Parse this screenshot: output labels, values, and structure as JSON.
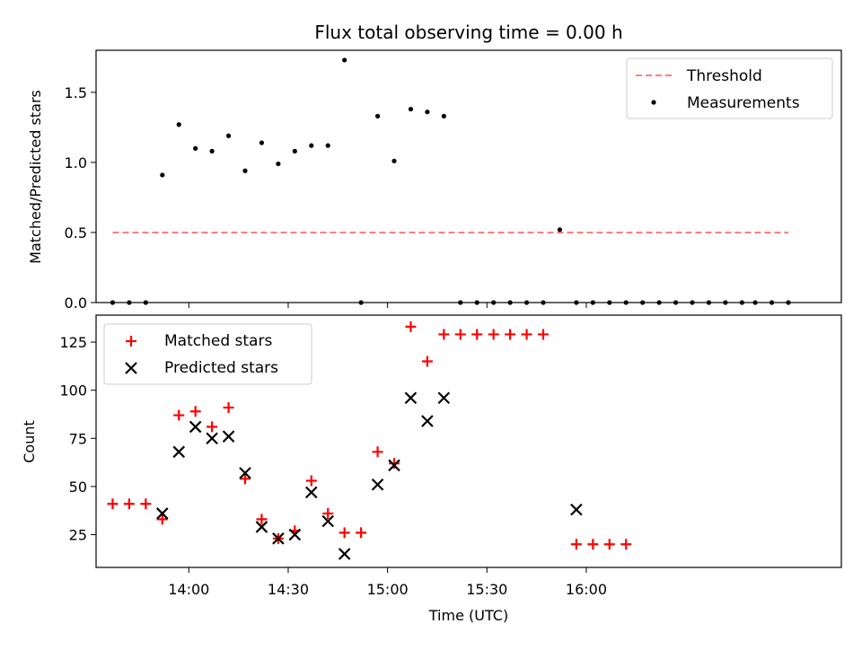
{
  "title": "Flux total observing time = 0.00 h",
  "colors": {
    "threshold": "#ff7f7f",
    "matched": "#ff0000",
    "predicted": "#000000",
    "measurement": "#000000",
    "axis": "#000000",
    "legend_border": "#cccccc"
  },
  "chart_data": [
    {
      "type": "scatter",
      "panel": "top",
      "title": "Flux total observing time = 0.00 h",
      "ylabel": "Matched/Predicted stars",
      "xlabel": "",
      "ylim": [
        0,
        1.8
      ],
      "yticks": [
        0,
        0.5,
        1.0,
        1.5
      ],
      "ytick_labels": [
        "0.0",
        "0.5",
        "1.0",
        "1.5"
      ],
      "xlim_min": [
        812,
        1037
      ],
      "xticks_min": [
        840,
        870,
        900,
        930,
        960
      ],
      "threshold": {
        "label": "Threshold",
        "x_min": [
          817,
          1021
        ],
        "y": 0.5
      },
      "measurements": {
        "label": "Measurements",
        "x_min": [
          817,
          822,
          827,
          832,
          837,
          842,
          847,
          852,
          857,
          862,
          867,
          872,
          877,
          882,
          887,
          892,
          897,
          902,
          907,
          912,
          917,
          922,
          927,
          932,
          937,
          942,
          947,
          952,
          957,
          962,
          967,
          972,
          977,
          982,
          987,
          992,
          997,
          1002,
          1007,
          1011,
          1016,
          1021
        ],
        "y": [
          0,
          0,
          0,
          0.91,
          1.27,
          1.1,
          1.08,
          1.19,
          0.94,
          1.14,
          0.99,
          1.08,
          1.12,
          1.12,
          1.73,
          0,
          1.33,
          1.01,
          1.38,
          1.36,
          1.33,
          0,
          0,
          0,
          0,
          0,
          0,
          0.52,
          0,
          0,
          0,
          0,
          0,
          0,
          0,
          0,
          0,
          0,
          0,
          0,
          0,
          0
        ]
      },
      "legend": [
        "Threshold",
        "Measurements"
      ],
      "legend_position": "top-right"
    },
    {
      "type": "scatter",
      "panel": "bottom",
      "xlabel": "Time (UTC)",
      "ylabel": "Count",
      "ylim": [
        8,
        139
      ],
      "yticks": [
        25,
        50,
        75,
        100,
        125
      ],
      "ytick_labels": [
        "25",
        "50",
        "75",
        "100",
        "125"
      ],
      "xlim_min": [
        812,
        1037
      ],
      "xticks_min": [
        840,
        870,
        900,
        930,
        960
      ],
      "xtick_labels": [
        "14:00",
        "14:30",
        "15:00",
        "15:30",
        "16:00"
      ],
      "series": [
        {
          "name": "Matched stars",
          "marker": "plus",
          "x_min": [
            817,
            822,
            827,
            832,
            837,
            842,
            847,
            852,
            857,
            862,
            867,
            872,
            877,
            882,
            887,
            892,
            897,
            902,
            907,
            912,
            917,
            922,
            927,
            932,
            937,
            942,
            947,
            957,
            962,
            967,
            972
          ],
          "y": [
            41,
            41,
            41,
            33,
            87,
            89,
            81,
            91,
            54,
            33,
            23,
            27,
            53,
            36,
            26,
            26,
            68,
            62,
            133,
            115,
            129,
            129,
            129,
            129,
            129,
            129,
            129,
            20,
            20,
            20,
            20
          ]
        },
        {
          "name": "Predicted stars",
          "marker": "x",
          "x_min": [
            832,
            837,
            842,
            847,
            852,
            857,
            862,
            867,
            872,
            877,
            882,
            887,
            897,
            902,
            907,
            912,
            917,
            957
          ],
          "y": [
            36,
            68,
            81,
            75,
            76,
            57,
            29,
            23,
            25,
            47,
            32,
            15,
            51,
            61,
            96,
            84,
            96,
            38
          ]
        }
      ],
      "legend": [
        "Matched stars",
        "Predicted stars"
      ],
      "legend_position": "top-left"
    }
  ]
}
